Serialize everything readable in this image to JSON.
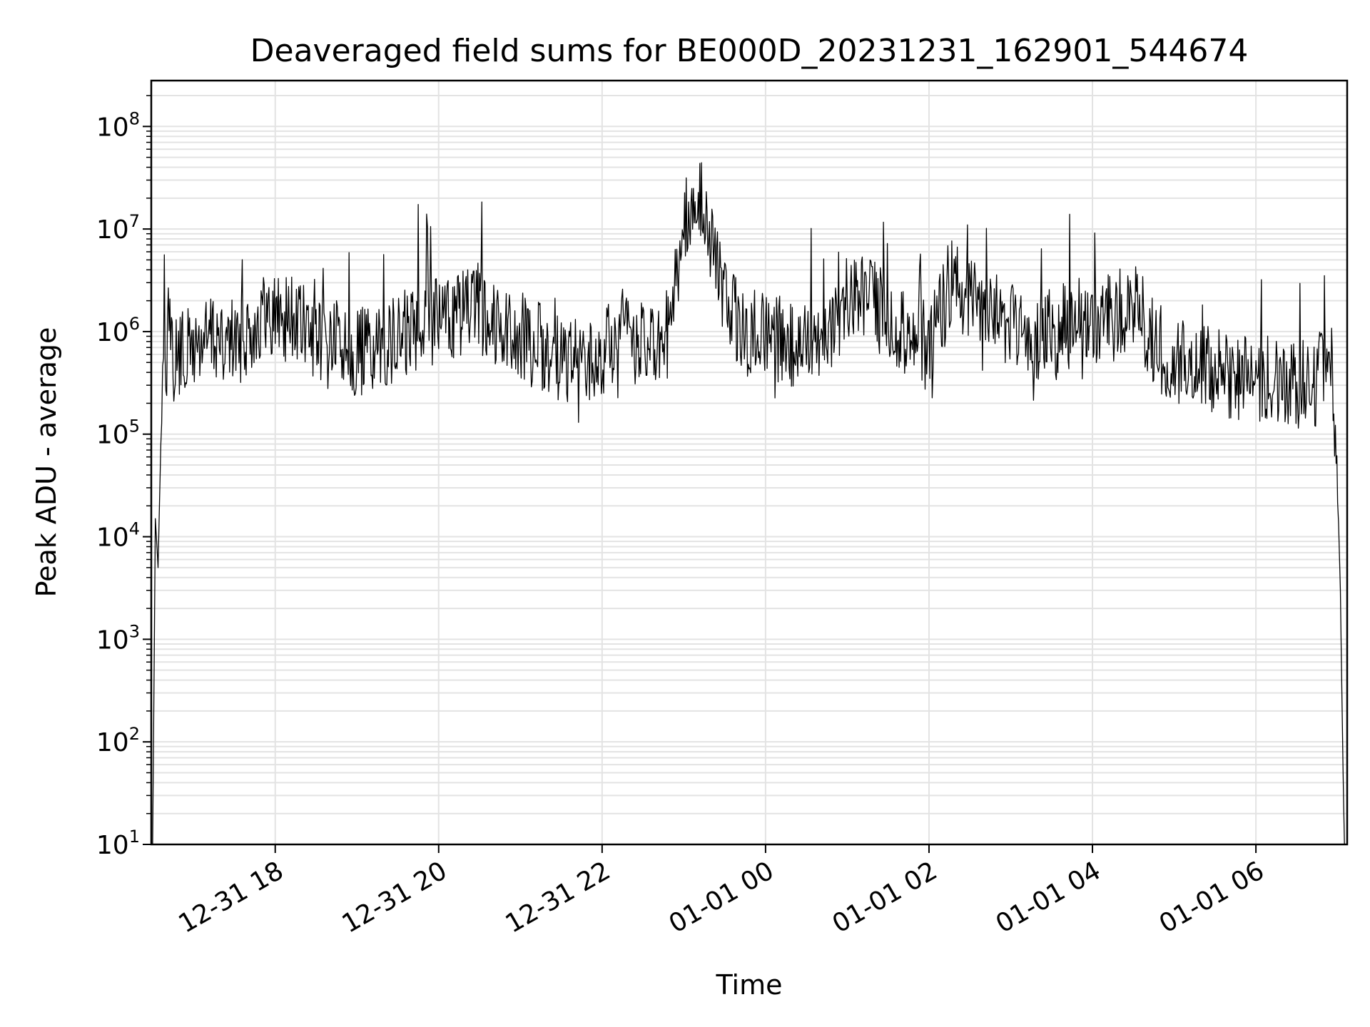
{
  "chart_data": {
    "type": "line",
    "title": "Deaveraged field sums for BE000D_20231231_162901_544674",
    "xlabel": "Time",
    "ylabel": "Peak ADU - average",
    "y_scale": "log",
    "ylim": [
      10,
      280000000
    ],
    "xlim": [
      "2023-12-31 16:29",
      "2024-01-01 07:07"
    ],
    "grid": true,
    "line_color": "#000000",
    "grid_color": "#e3e3e3",
    "x_ticks": [
      {
        "value": "2023-12-31 18:00",
        "label": "12-31 18"
      },
      {
        "value": "2023-12-31 20:00",
        "label": "12-31 20"
      },
      {
        "value": "2023-12-31 22:00",
        "label": "12-31 22"
      },
      {
        "value": "2024-01-01 00:00",
        "label": "01-01 00"
      },
      {
        "value": "2024-01-01 02:00",
        "label": "01-01 02"
      },
      {
        "value": "2024-01-01 04:00",
        "label": "01-01 04"
      },
      {
        "value": "2024-01-01 06:00",
        "label": "01-01 06"
      }
    ],
    "y_ticks": [
      {
        "value": 10,
        "base": "10",
        "exp": "1"
      },
      {
        "value": 100,
        "base": "10",
        "exp": "2"
      },
      {
        "value": 1000,
        "base": "10",
        "exp": "3"
      },
      {
        "value": 10000,
        "base": "10",
        "exp": "4"
      },
      {
        "value": 100000,
        "base": "10",
        "exp": "5"
      },
      {
        "value": 1000000,
        "base": "10",
        "exp": "6"
      },
      {
        "value": 10000000,
        "base": "10",
        "exp": "7"
      },
      {
        "value": 100000000,
        "base": "10",
        "exp": "8"
      }
    ],
    "series": [
      {
        "x": [
          "2023-12-31 16:30",
          "2023-12-31 16:32",
          "2023-12-31 16:34",
          "2023-12-31 16:36",
          "2023-12-31 16:38",
          "2023-12-31 16:45",
          "2023-12-31 17:00",
          "2023-12-31 17:15",
          "2023-12-31 17:30",
          "2023-12-31 17:45",
          "2023-12-31 18:00",
          "2023-12-31 18:15",
          "2023-12-31 18:30",
          "2023-12-31 18:45",
          "2023-12-31 19:00",
          "2023-12-31 19:15",
          "2023-12-31 19:30",
          "2023-12-31 19:45",
          "2023-12-31 19:50",
          "2023-12-31 20:00",
          "2023-12-31 20:15",
          "2023-12-31 20:30",
          "2023-12-31 20:45",
          "2023-12-31 21:00",
          "2023-12-31 21:15",
          "2023-12-31 21:30",
          "2023-12-31 21:45",
          "2023-12-31 22:00",
          "2023-12-31 22:15",
          "2023-12-31 22:30",
          "2023-12-31 22:45",
          "2023-12-31 23:00",
          "2023-12-31 23:10",
          "2023-12-31 23:20",
          "2023-12-31 23:30",
          "2023-12-31 23:45",
          "2024-01-01 00:00",
          "2024-01-01 00:15",
          "2024-01-01 00:30",
          "2024-01-01 00:45",
          "2024-01-01 01:00",
          "2024-01-01 01:15",
          "2024-01-01 01:30",
          "2024-01-01 01:45",
          "2024-01-01 02:00",
          "2024-01-01 02:15",
          "2024-01-01 02:30",
          "2024-01-01 02:45",
          "2024-01-01 03:00",
          "2024-01-01 03:15",
          "2024-01-01 03:30",
          "2024-01-01 03:45",
          "2024-01-01 04:00",
          "2024-01-01 04:15",
          "2024-01-01 04:30",
          "2024-01-01 04:45",
          "2024-01-01 05:00",
          "2024-01-01 05:15",
          "2024-01-01 05:30",
          "2024-01-01 05:45",
          "2024-01-01 06:00",
          "2024-01-01 06:15",
          "2024-01-01 06:30",
          "2024-01-01 06:45",
          "2024-01-01 06:55",
          "2024-01-01 07:00",
          "2024-01-01 07:02",
          "2024-01-01 07:04",
          "2024-01-01 07:05"
        ],
        "y": [
          10,
          15000,
          5000,
          80000,
          600000,
          500000,
          700000,
          900000,
          800000,
          1200000,
          1500000,
          1300000,
          700000,
          800000,
          600000,
          700000,
          800000,
          1200000,
          1100000,
          1300000,
          1500000,
          1800000,
          1200000,
          900000,
          700000,
          500000,
          500000,
          600000,
          1000000,
          700000,
          600000,
          10000000,
          30000000,
          8000000,
          2000000,
          900000,
          1000000,
          800000,
          700000,
          1000000,
          2000000,
          2500000,
          1200000,
          1000000,
          700000,
          3000000,
          2000000,
          1500000,
          1200000,
          800000,
          1000000,
          1200000,
          1500000,
          1300000,
          2000000,
          800000,
          500000,
          450000,
          400000,
          380000,
          350000,
          330000,
          300000,
          320000,
          800000,
          30000,
          3000,
          50,
          10
        ]
      }
    ]
  }
}
